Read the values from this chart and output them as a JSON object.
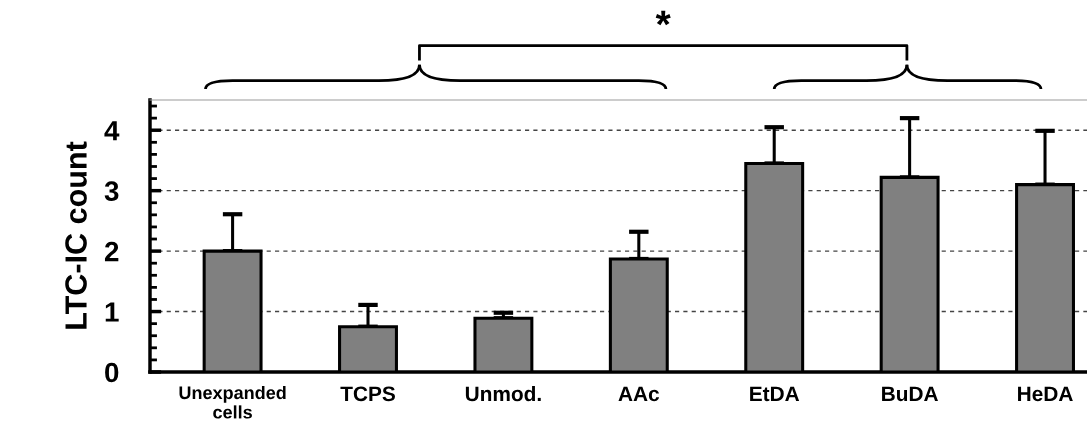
{
  "chart_data": {
    "type": "bar",
    "categories": [
      "Unexpanded\ncells",
      "TCPS",
      "Unmod.",
      "AAc",
      "EtDA",
      "BuDA",
      "HeDA"
    ],
    "values": [
      2.0,
      0.75,
      0.89,
      1.87,
      3.45,
      3.22,
      3.1
    ],
    "errors": [
      [
        2.0,
        2.61
      ],
      [
        0.75,
        1.11
      ],
      [
        0.89,
        0.98
      ],
      [
        1.87,
        2.32
      ],
      [
        3.45,
        4.05
      ],
      [
        3.22,
        4.2
      ],
      [
        3.1,
        3.99
      ]
    ],
    "color": "#808080",
    "ylabel": "LTC-IC count",
    "ylim": [
      0,
      4.5
    ],
    "yticks": [
      0,
      1,
      2,
      3,
      4
    ],
    "grid": "y",
    "annotations": [
      "*"
    ]
  }
}
